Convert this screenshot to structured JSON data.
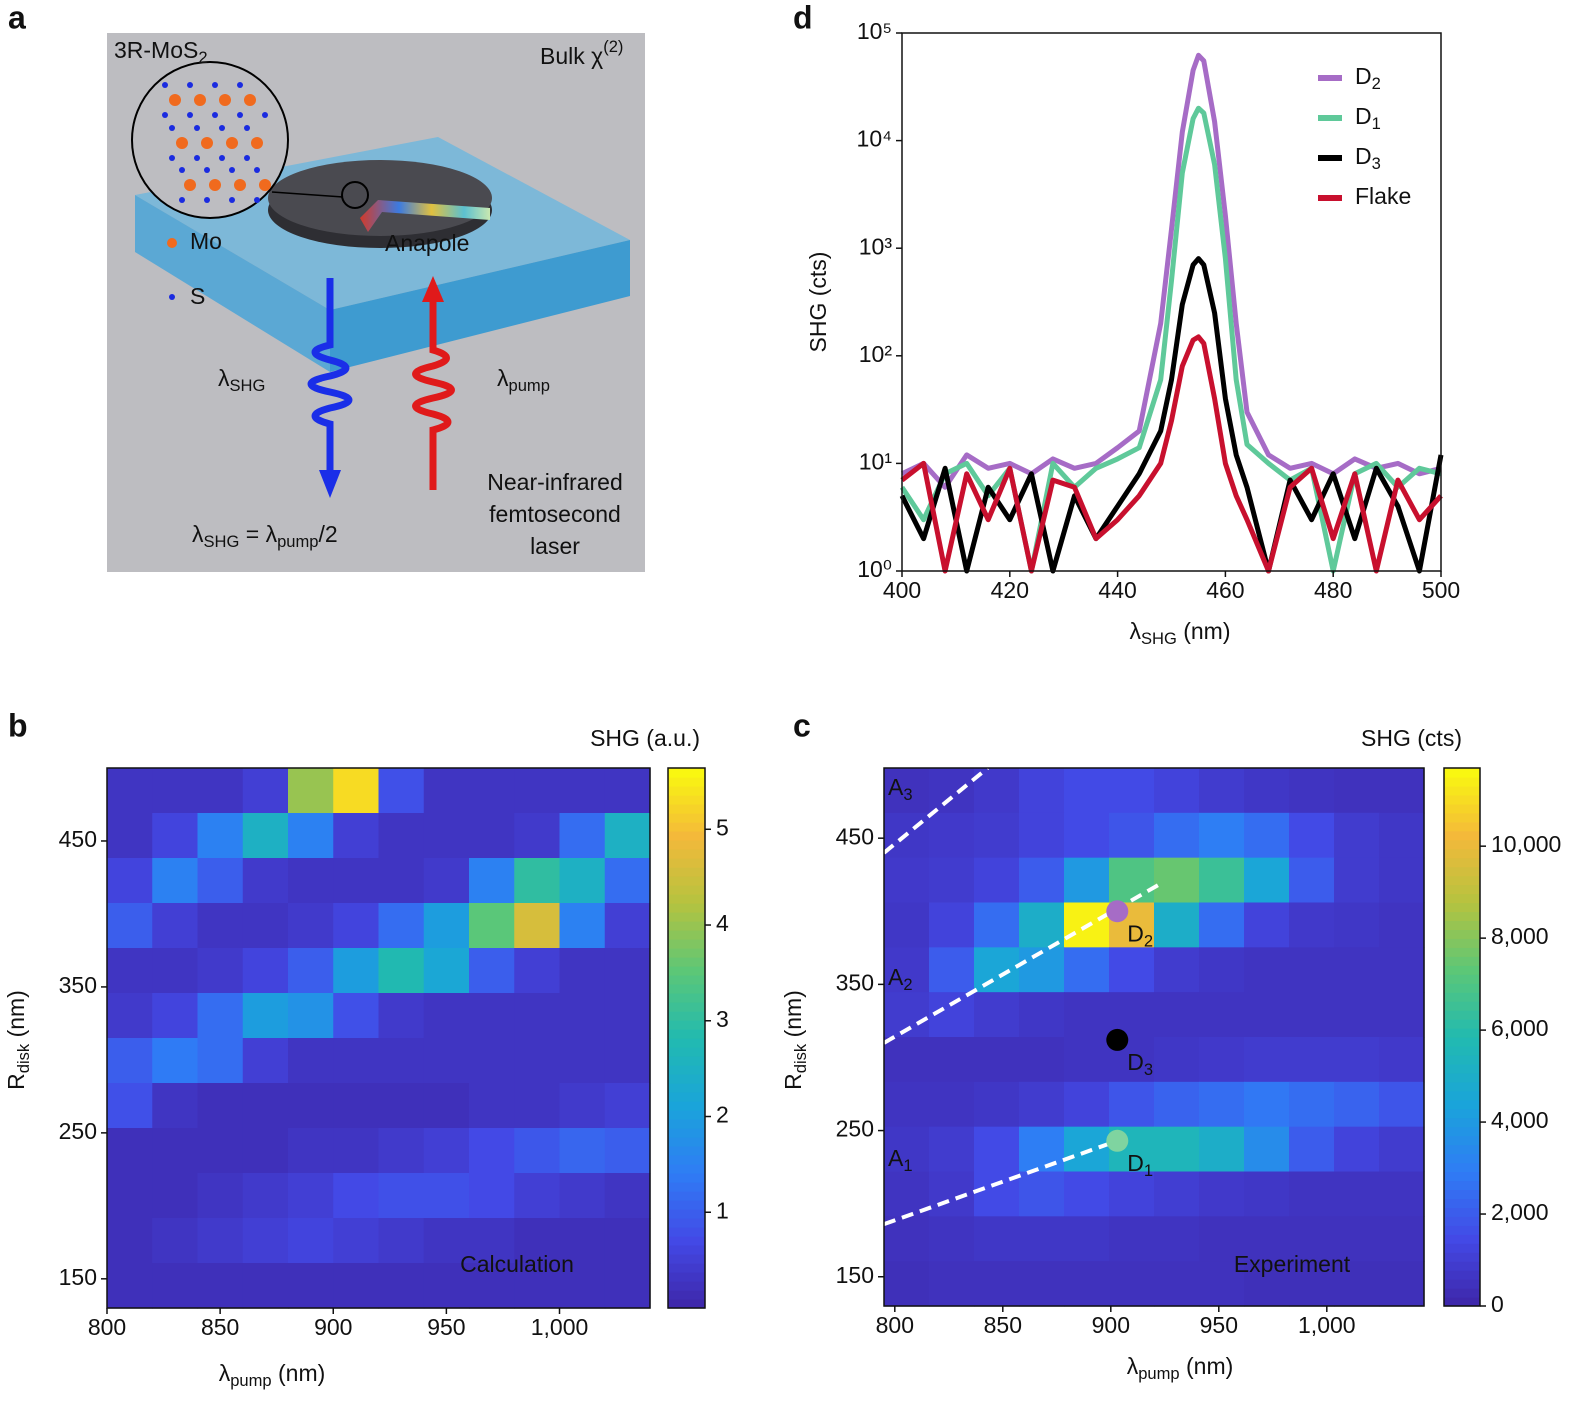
{
  "panel_a": {
    "panel_label": "a",
    "material": [
      "3R-MoS",
      {
        "sub": "2"
      }
    ],
    "bulk": [
      "Bulk χ",
      {
        "sup": "(2)"
      }
    ],
    "mo": "Mo",
    "s": "S",
    "anapole": "Anapole",
    "shg": [
      "λ",
      {
        "sub": "SHG"
      }
    ],
    "pump": [
      "λ",
      {
        "sub": "pump"
      }
    ],
    "equation": [
      "λ",
      {
        "sub": "SHG"
      },
      " = λ",
      {
        "sub": "pump"
      },
      "/2"
    ],
    "laser": [
      "Near-infrared",
      "femtosecond",
      "laser"
    ]
  },
  "chart_data": [
    {
      "type": "line",
      "panel_label": "d",
      "yscale": "log",
      "xlabel": [
        "λ",
        {
          "sub": "SHG"
        },
        " (nm)"
      ],
      "ylabel": "SHG (cts)",
      "xlim": [
        400,
        500
      ],
      "xticks": [
        400,
        420,
        440,
        460,
        480,
        500
      ],
      "ylim": [
        1,
        100000
      ],
      "yticks": [
        {
          "value": 1,
          "label": "10⁰"
        },
        {
          "value": 10,
          "label": "10¹"
        },
        {
          "value": 100,
          "label": "10²"
        },
        {
          "value": 1000,
          "label": "10³"
        },
        {
          "value": 10000,
          "label": "10⁴"
        },
        {
          "value": 100000,
          "label": "10⁵"
        }
      ],
      "legend": "upper right",
      "x": [
        400,
        404,
        408,
        412,
        416,
        420,
        424,
        428,
        432,
        436,
        440,
        444,
        448,
        450,
        452,
        454,
        455,
        456,
        458,
        460,
        462,
        464,
        468,
        472,
        476,
        480,
        484,
        488,
        492,
        496,
        500
      ],
      "series": [
        {
          "name": [
            "D",
            {
              "sub": "2"
            }
          ],
          "color": "#a66cc6",
          "values": [
            8,
            10,
            6,
            12,
            9,
            10,
            8,
            11,
            9,
            10,
            14,
            20,
            200,
            1500,
            12000,
            45000,
            62000,
            55000,
            15000,
            2000,
            200,
            30,
            12,
            9,
            10,
            8,
            11,
            9,
            10,
            8,
            9
          ]
        },
        {
          "name": [
            "D",
            {
              "sub": "1"
            }
          ],
          "color": "#5fc99a",
          "values": [
            6,
            3,
            8,
            10,
            5,
            9,
            1,
            10,
            6,
            9,
            11,
            14,
            60,
            500,
            5000,
            16000,
            20000,
            18000,
            6000,
            800,
            60,
            15,
            10,
            7,
            9,
            1,
            8,
            10,
            6,
            9,
            8
          ]
        },
        {
          "name": [
            "D",
            {
              "sub": "3"
            }
          ],
          "color": "#000000",
          "values": [
            5,
            2,
            9,
            1,
            6,
            3,
            8,
            1,
            5,
            2,
            4,
            8,
            20,
            60,
            300,
            700,
            800,
            700,
            250,
            40,
            12,
            6,
            1,
            7,
            3,
            8,
            2,
            9,
            4,
            1,
            12
          ]
        },
        {
          "name": "Flake",
          "color": "#c8102e",
          "values": [
            7,
            10,
            1,
            8,
            3,
            9,
            1,
            7,
            6,
            2,
            3,
            5,
            10,
            25,
            80,
            140,
            150,
            130,
            40,
            10,
            5,
            3,
            1,
            6,
            9,
            2,
            8,
            1,
            7,
            3,
            5
          ]
        }
      ]
    },
    {
      "type": "heatmap",
      "panel_label": "b",
      "xlabel": [
        "λ",
        {
          "sub": "pump"
        },
        " (nm)"
      ],
      "ylabel": [
        "R",
        {
          "sub": "disk"
        },
        " (nm)"
      ],
      "xlim": [
        800,
        1040
      ],
      "xticks": [
        800,
        850,
        900,
        950,
        {
          "value": 1000,
          "label": "1,000"
        }
      ],
      "ylim": [
        130,
        500
      ],
      "yticks": [
        150,
        250,
        350,
        450
      ],
      "colorbar_title": "SHG (a.u.)",
      "clim": [
        0,
        5.64
      ],
      "cticks": [
        1,
        2,
        3,
        4,
        5
      ],
      "colormap": [
        "#3e26a8",
        "#4349e6",
        "#2f7cf5",
        "#1aa4da",
        "#21bab0",
        "#5cc777",
        "#b5c33f",
        "#f4b93a",
        "#f9fb0e"
      ],
      "annotation": "Calculation",
      "z": [
        [
          0.3,
          0.3,
          0.3,
          0.5,
          4.0,
          5.3,
          0.8,
          0.3,
          0.3,
          0.3,
          0.3,
          0.3
        ],
        [
          0.3,
          0.6,
          1.5,
          2.5,
          1.5,
          0.5,
          0.3,
          0.3,
          0.3,
          0.4,
          1.2,
          2.5
        ],
        [
          0.6,
          1.5,
          1.0,
          0.4,
          0.3,
          0.3,
          0.3,
          0.4,
          1.5,
          3.0,
          2.5,
          1.2
        ],
        [
          1.0,
          0.5,
          0.3,
          0.3,
          0.4,
          0.6,
          1.2,
          2.0,
          3.5,
          4.6,
          1.5,
          0.5
        ],
        [
          0.3,
          0.3,
          0.4,
          0.6,
          1.0,
          2.0,
          2.8,
          2.2,
          1.0,
          0.5,
          0.3,
          0.3
        ],
        [
          0.4,
          0.6,
          1.2,
          2.0,
          1.8,
          0.8,
          0.4,
          0.3,
          0.3,
          0.3,
          0.3,
          0.3
        ],
        [
          1.0,
          1.4,
          1.2,
          0.5,
          0.3,
          0.3,
          0.3,
          0.3,
          0.3,
          0.3,
          0.3,
          0.3
        ],
        [
          0.8,
          0.3,
          0.2,
          0.2,
          0.2,
          0.2,
          0.2,
          0.2,
          0.3,
          0.3,
          0.4,
          0.5
        ],
        [
          0.2,
          0.2,
          0.2,
          0.2,
          0.3,
          0.3,
          0.4,
          0.5,
          0.7,
          0.9,
          1.1,
          1.0
        ],
        [
          0.2,
          0.2,
          0.3,
          0.4,
          0.5,
          0.7,
          0.8,
          0.8,
          0.7,
          0.5,
          0.4,
          0.3
        ],
        [
          0.2,
          0.3,
          0.4,
          0.5,
          0.6,
          0.5,
          0.4,
          0.3,
          0.3,
          0.2,
          0.2,
          0.2
        ],
        [
          0.2,
          0.2,
          0.2,
          0.2,
          0.2,
          0.2,
          0.2,
          0.2,
          0.2,
          0.2,
          0.2,
          0.2
        ]
      ]
    },
    {
      "type": "heatmap",
      "panel_label": "c",
      "xlabel": [
        "λ",
        {
          "sub": "pump"
        },
        " (nm)"
      ],
      "ylabel": [
        "R",
        {
          "sub": "disk"
        },
        " (nm)"
      ],
      "xlim": [
        795,
        1045
      ],
      "xticks": [
        800,
        850,
        900,
        950,
        {
          "value": 1000,
          "label": "1,000"
        }
      ],
      "ylim": [
        130,
        498
      ],
      "yticks": [
        150,
        250,
        350,
        450
      ],
      "colorbar_title": "SHG (cts)",
      "clim": [
        0,
        11700
      ],
      "cticks": [
        0,
        {
          "value": 2000,
          "label": "2,000"
        },
        {
          "value": 4000,
          "label": "4,000"
        },
        {
          "value": 6000,
          "label": "6,000"
        },
        {
          "value": 8000,
          "label": "8,000"
        },
        {
          "value": 10000,
          "label": "10,000"
        }
      ],
      "colormap": [
        "#3e26a8",
        "#4349e6",
        "#2f7cf5",
        "#1aa4da",
        "#21bab0",
        "#5cc777",
        "#b5c33f",
        "#f4b93a",
        "#f9fb0e"
      ],
      "annotation": "Experiment",
      "z": [
        [
          500,
          600,
          800,
          1200,
          1500,
          1500,
          1200,
          900,
          700,
          600,
          500,
          500
        ],
        [
          700,
          800,
          900,
          1200,
          1500,
          1800,
          2500,
          3000,
          2500,
          1500,
          900,
          700
        ],
        [
          800,
          900,
          1200,
          2000,
          4000,
          7000,
          7500,
          6500,
          4500,
          2000,
          900,
          700
        ],
        [
          700,
          1200,
          2500,
          5000,
          11500,
          10000,
          5000,
          2500,
          1200,
          800,
          700,
          600
        ],
        [
          800,
          2000,
          4500,
          4000,
          2500,
          1500,
          900,
          700,
          600,
          600,
          600,
          600
        ],
        [
          900,
          1200,
          900,
          700,
          600,
          600,
          600,
          600,
          600,
          600,
          600,
          600
        ],
        [
          500,
          500,
          500,
          500,
          600,
          600,
          700,
          800,
          900,
          900,
          900,
          800
        ],
        [
          600,
          600,
          700,
          900,
          1200,
          1800,
          2200,
          2500,
          2800,
          2500,
          2200,
          1800
        ],
        [
          700,
          900,
          1500,
          3000,
          4500,
          5500,
          5500,
          5000,
          3500,
          2000,
          1200,
          900
        ],
        [
          600,
          800,
          1500,
          1800,
          1500,
          1200,
          1000,
          800,
          700,
          600,
          600,
          600
        ],
        [
          500,
          600,
          700,
          700,
          700,
          600,
          600,
          500,
          500,
          500,
          500,
          500
        ],
        [
          400,
          500,
          500,
          500,
          500,
          500,
          500,
          500,
          400,
          400,
          400,
          400
        ]
      ],
      "guides": [
        {
          "label": [
            "A",
            {
              "sub": "3"
            }
          ],
          "x": [
            795,
            843
          ],
          "y": [
            440,
            498
          ]
        },
        {
          "label": [
            "A",
            {
              "sub": "2"
            }
          ],
          "x": [
            795,
            922
          ],
          "y": [
            310,
            418
          ]
        },
        {
          "label": [
            "A",
            {
              "sub": "1"
            }
          ],
          "x": [
            795,
            903
          ],
          "y": [
            186,
            243
          ]
        }
      ],
      "markers": [
        {
          "label": [
            "D",
            {
              "sub": "2"
            }
          ],
          "x": 903,
          "y": 400,
          "color": "#a66cc6"
        },
        {
          "label": [
            "D",
            {
              "sub": "3"
            }
          ],
          "x": 903,
          "y": 312,
          "color": "#000000"
        },
        {
          "label": [
            "D",
            {
              "sub": "1"
            }
          ],
          "x": 903,
          "y": 243,
          "color": "#7fd4a0"
        }
      ]
    }
  ]
}
